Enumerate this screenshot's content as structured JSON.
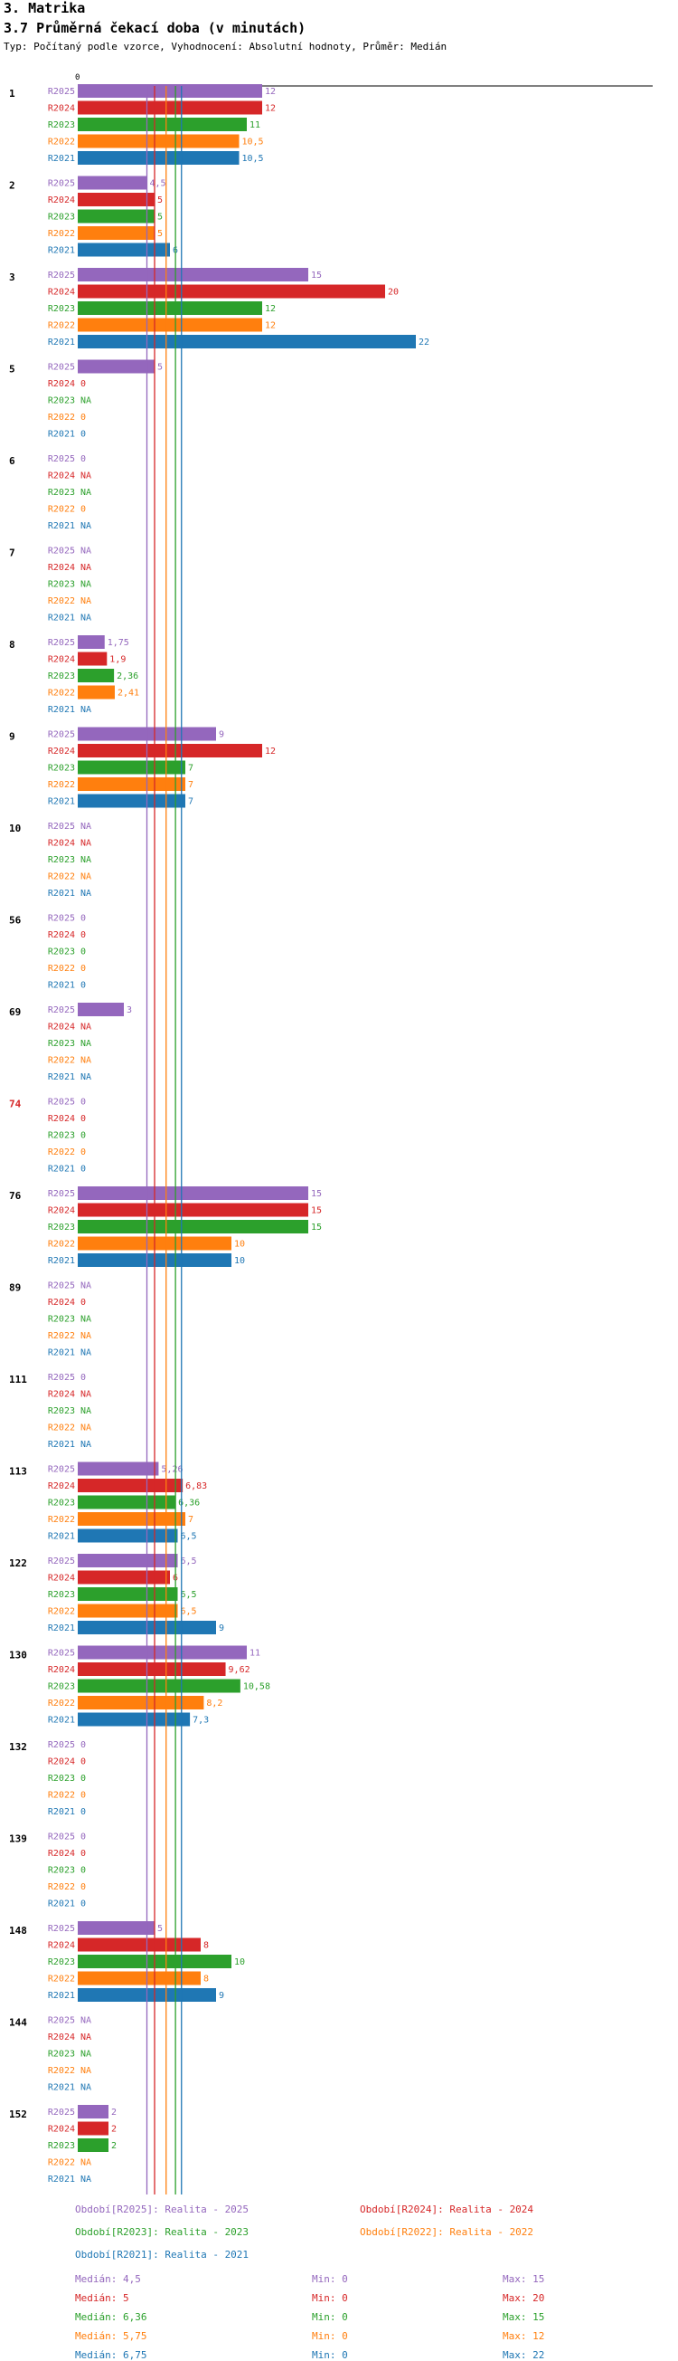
{
  "header": {
    "section": "3. Matrika",
    "title": "3.7 Průměrná čekací doba (v minutách)",
    "subtitle": "Typ: Počítaný podle vzorce, Vyhodnocení: Absolutní hodnoty, Průměr: Medián"
  },
  "colors": {
    "R2025": "#9467bd",
    "R2024": "#d62728",
    "R2023": "#2ca02c",
    "R2022": "#ff7f0e",
    "R2021": "#1f77b4",
    "highlight": "#d62728"
  },
  "chart_data": {
    "type": "bar",
    "orientation": "horizontal",
    "title": "3.7 Průměrná čekací doba (v minutách)",
    "axis_zero_label": "0",
    "xlim": [
      0,
      22
    ],
    "series_names": [
      "R2025",
      "R2024",
      "R2023",
      "R2022",
      "R2021"
    ],
    "categories": [
      {
        "label": "1",
        "highlight": false,
        "values": [
          12,
          12,
          11,
          10.5,
          10.5
        ],
        "labels": [
          "12",
          "12",
          "11",
          "10,5",
          "10,5"
        ]
      },
      {
        "label": "2",
        "highlight": false,
        "values": [
          4.5,
          5,
          5,
          5,
          6
        ],
        "labels": [
          "4,5",
          "5",
          "5",
          "5",
          "6"
        ]
      },
      {
        "label": "3",
        "highlight": false,
        "values": [
          15,
          20,
          12,
          12,
          22
        ],
        "labels": [
          "15",
          "20",
          "12",
          "12",
          "22"
        ]
      },
      {
        "label": "5",
        "highlight": false,
        "values": [
          5,
          0,
          null,
          0,
          0
        ],
        "labels": [
          "5",
          "0",
          "NA",
          "0",
          "0"
        ]
      },
      {
        "label": "6",
        "highlight": false,
        "values": [
          0,
          null,
          null,
          0,
          null
        ],
        "labels": [
          "0",
          "NA",
          "NA",
          "0",
          "NA"
        ]
      },
      {
        "label": "7",
        "highlight": false,
        "values": [
          null,
          null,
          null,
          null,
          null
        ],
        "labels": [
          "NA",
          "NA",
          "NA",
          "NA",
          "NA"
        ]
      },
      {
        "label": "8",
        "highlight": false,
        "values": [
          1.75,
          1.9,
          2.36,
          2.41,
          null
        ],
        "labels": [
          "1,75",
          "1,9",
          "2,36",
          "2,41",
          "NA"
        ]
      },
      {
        "label": "9",
        "highlight": false,
        "values": [
          9,
          12,
          7,
          7,
          7
        ],
        "labels": [
          "9",
          "12",
          "7",
          "7",
          "7"
        ]
      },
      {
        "label": "10",
        "highlight": false,
        "values": [
          null,
          null,
          null,
          null,
          null
        ],
        "labels": [
          "NA",
          "NA",
          "NA",
          "NA",
          "NA"
        ]
      },
      {
        "label": "56",
        "highlight": false,
        "values": [
          0,
          0,
          0,
          0,
          0
        ],
        "labels": [
          "0",
          "0",
          "0",
          "0",
          "0"
        ]
      },
      {
        "label": "69",
        "highlight": false,
        "values": [
          3,
          null,
          null,
          null,
          null
        ],
        "labels": [
          "3",
          "NA",
          "NA",
          "NA",
          "NA"
        ]
      },
      {
        "label": "74",
        "highlight": true,
        "values": [
          0,
          0,
          0,
          0,
          0
        ],
        "labels": [
          "0",
          "0",
          "0",
          "0",
          "0"
        ]
      },
      {
        "label": "76",
        "highlight": false,
        "values": [
          15,
          15,
          15,
          10,
          10
        ],
        "labels": [
          "15",
          "15",
          "15",
          "10",
          "10"
        ]
      },
      {
        "label": "89",
        "highlight": false,
        "values": [
          null,
          0,
          null,
          null,
          null
        ],
        "labels": [
          "NA",
          "0",
          "NA",
          "NA",
          "NA"
        ]
      },
      {
        "label": "111",
        "highlight": false,
        "values": [
          0,
          null,
          null,
          null,
          null
        ],
        "labels": [
          "0",
          "NA",
          "NA",
          "NA",
          "NA"
        ]
      },
      {
        "label": "113",
        "highlight": false,
        "values": [
          5.26,
          6.83,
          6.36,
          7,
          6.5
        ],
        "labels": [
          "5,26",
          "6,83",
          "6,36",
          "7",
          "6,5"
        ]
      },
      {
        "label": "122",
        "highlight": false,
        "values": [
          6.5,
          6,
          6.5,
          6.5,
          9
        ],
        "labels": [
          "6,5",
          "6",
          "6,5",
          "6,5",
          "9"
        ]
      },
      {
        "label": "130",
        "highlight": false,
        "values": [
          11,
          9.62,
          10.58,
          8.2,
          7.3
        ],
        "labels": [
          "11",
          "9,62",
          "10,58",
          "8,2",
          "7,3"
        ]
      },
      {
        "label": "132",
        "highlight": false,
        "values": [
          0,
          0,
          0,
          0,
          0
        ],
        "labels": [
          "0",
          "0",
          "0",
          "0",
          "0"
        ]
      },
      {
        "label": "139",
        "highlight": false,
        "values": [
          0,
          0,
          0,
          0,
          0
        ],
        "labels": [
          "0",
          "0",
          "0",
          "0",
          "0"
        ]
      },
      {
        "label": "148",
        "highlight": false,
        "values": [
          5,
          8,
          10,
          8,
          9
        ],
        "labels": [
          "5",
          "8",
          "10",
          "8",
          "9"
        ]
      },
      {
        "label": "144",
        "highlight": false,
        "values": [
          null,
          null,
          null,
          null,
          null
        ],
        "labels": [
          "NA",
          "NA",
          "NA",
          "NA",
          "NA"
        ]
      },
      {
        "label": "152",
        "highlight": false,
        "values": [
          2,
          2,
          2,
          null,
          null
        ],
        "labels": [
          "2",
          "2",
          "2",
          "NA",
          "NA"
        ]
      }
    ],
    "median_lines": [
      {
        "series": "R2025",
        "value": 4.5
      },
      {
        "series": "R2024",
        "value": 5
      },
      {
        "series": "R2023",
        "value": 6.36
      },
      {
        "series": "R2022",
        "value": 5.75
      },
      {
        "series": "R2021",
        "value": 6.75
      }
    ],
    "legend": [
      {
        "series": "R2025",
        "text": "Období[R2025]: Realita - 2025"
      },
      {
        "series": "R2024",
        "text": "Období[R2024]: Realita - 2024"
      },
      {
        "series": "R2023",
        "text": "Období[R2023]: Realita - 2023"
      },
      {
        "series": "R2022",
        "text": "Období[R2022]: Realita - 2022"
      },
      {
        "series": "R2021",
        "text": "Období[R2021]: Realita - 2021"
      }
    ],
    "stats": [
      {
        "series": "R2025",
        "median": "Medián: 4,5",
        "min": "Min: 0",
        "max": "Max: 15"
      },
      {
        "series": "R2024",
        "median": "Medián: 5",
        "min": "Min: 0",
        "max": "Max: 20"
      },
      {
        "series": "R2023",
        "median": "Medián: 6,36",
        "min": "Min: 0",
        "max": "Max: 15"
      },
      {
        "series": "R2022",
        "median": "Medián: 5,75",
        "min": "Min: 0",
        "max": "Max: 12"
      },
      {
        "series": "R2021",
        "median": "Medián: 6,75",
        "min": "Min: 0",
        "max": "Max: 22"
      }
    ]
  }
}
